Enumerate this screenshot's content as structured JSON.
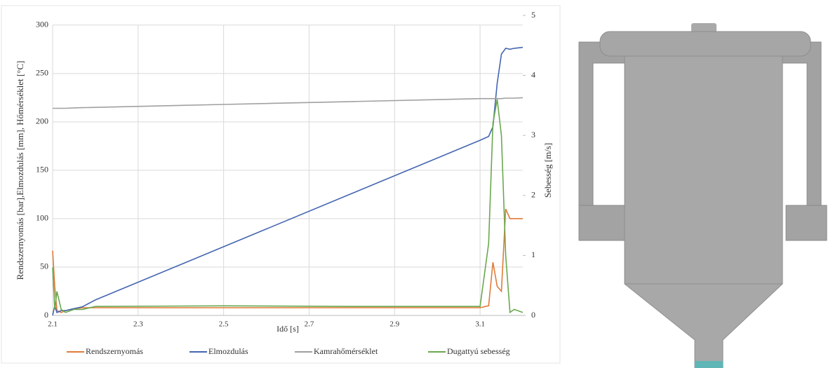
{
  "chart_data": {
    "type": "line",
    "x_label": "Idő [s]",
    "y_label": "Rendszernyomás [bar],Elmozdulás [mm], Hőmérséklet [°C]",
    "y2_label": "Sebesség [m/s]",
    "x": [
      2.1,
      2.105,
      2.11,
      2.12,
      2.13,
      2.15,
      2.17,
      2.2,
      2.5,
      2.8,
      3.1,
      3.12,
      3.13,
      3.14,
      3.15,
      3.16,
      3.17,
      3.18,
      3.2
    ],
    "series": [
      {
        "name": "Rendszernyomás",
        "color": "#e07b39",
        "values": [
          67,
          30,
          5,
          3,
          5,
          7,
          8,
          8,
          8,
          8,
          8,
          10,
          55,
          30,
          25,
          110,
          100,
          100,
          100
        ]
      },
      {
        "name": "Elmozdulás",
        "color": "#4466b0",
        "values": [
          0,
          10,
          3,
          5,
          5,
          7,
          9,
          16,
          71,
          126,
          181,
          185,
          195,
          240,
          270,
          276,
          275,
          276,
          277
        ]
      },
      {
        "name": "Kamrahőmérséklet",
        "color": "#a0a0a0",
        "values": [
          214,
          214,
          214,
          214,
          214,
          214.5,
          214.7,
          215,
          218,
          221,
          224,
          224,
          224,
          224,
          224,
          224.5,
          224.5,
          224.5,
          225
        ]
      },
      {
        "name": "Dugattyú sebesség",
        "color": "#6aa84f",
        "axis": "y2",
        "values": [
          0.8,
          0.1,
          0.4,
          0.1,
          0.05,
          0.1,
          0.1,
          0.15,
          0.16,
          0.15,
          0.15,
          1.2,
          3.2,
          3.6,
          3.0,
          1.0,
          0.05,
          0.1,
          0.05
        ]
      }
    ],
    "xlim": [
      2.1,
      3.2
    ],
    "xticks": [
      2.1,
      2.3,
      2.5,
      2.7,
      2.9,
      3.1
    ],
    "ylim": [
      0,
      310
    ],
    "yticks": [
      0,
      50,
      100,
      150,
      200,
      250,
      300
    ],
    "y2lim": [
      0,
      5
    ],
    "y2ticks": [
      0,
      1,
      2,
      3,
      4,
      5
    ],
    "grid": true,
    "legend": "bottom"
  }
}
